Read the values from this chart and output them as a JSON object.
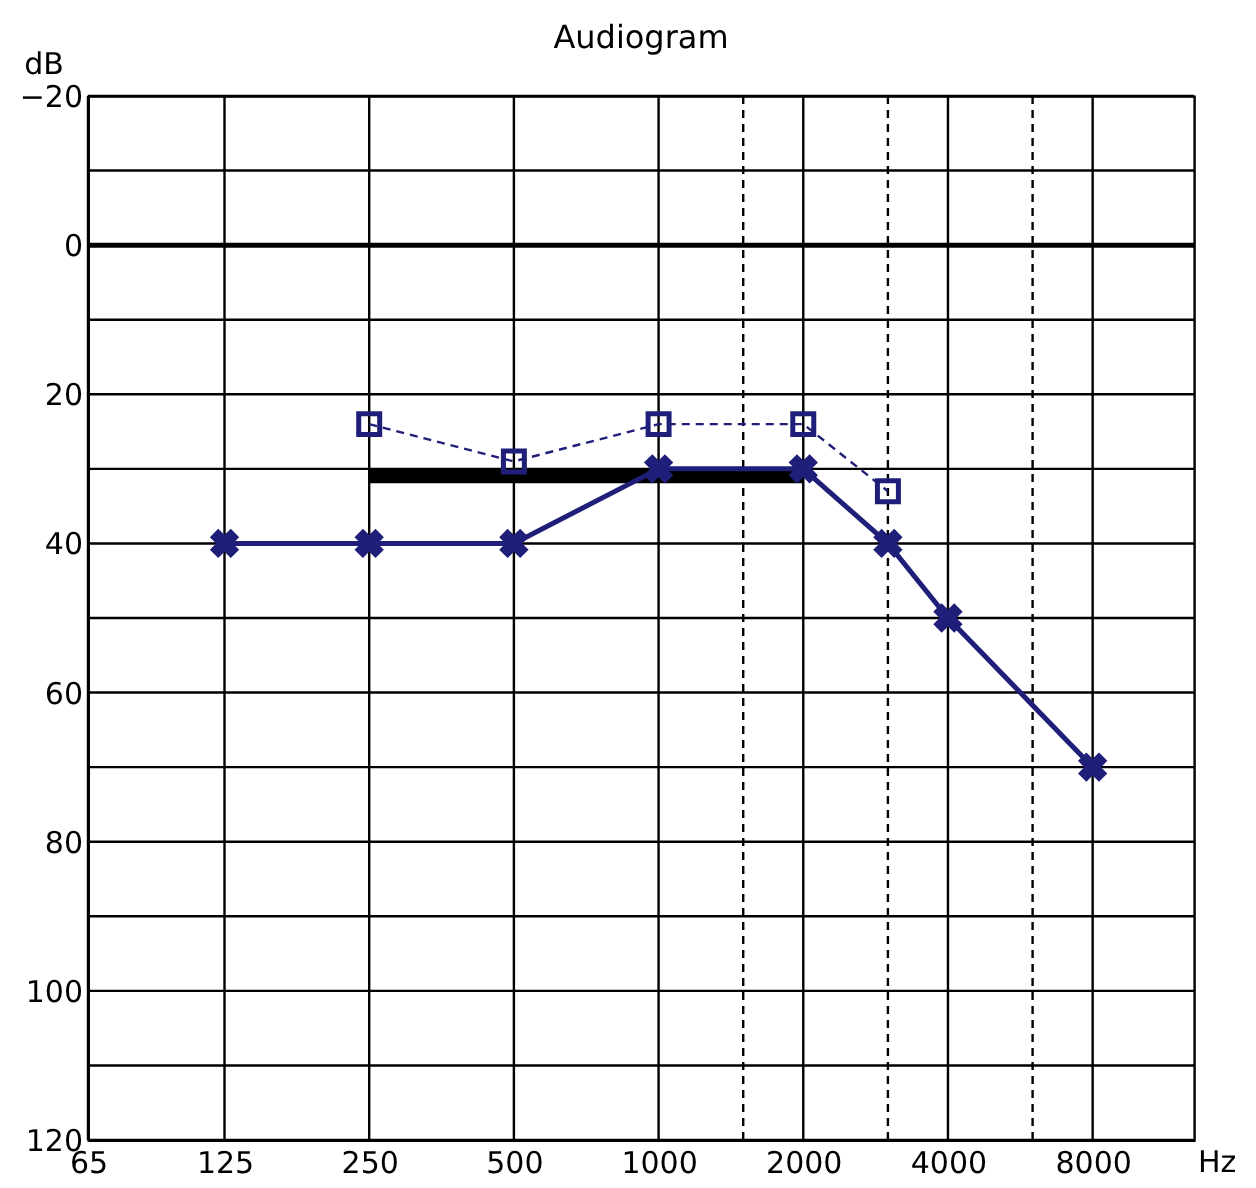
{
  "chart_data": {
    "type": "line",
    "title": "Audiogram",
    "xlabel": "Hz",
    "ylabel": "dB",
    "log": "x",
    "xlim": [
      65,
      13000
    ],
    "xticks": [
      65,
      125,
      250,
      500,
      1000,
      2000,
      4000,
      8000
    ],
    "ylim": [
      120,
      -20
    ],
    "yticks": [
      {
        "value": -20,
        "label": "−20"
      },
      {
        "value": -10,
        "label": null
      },
      0,
      {
        "value": 10,
        "label": null
      },
      20,
      {
        "value": 30,
        "label": null
      },
      40,
      {
        "value": 50,
        "label": null
      },
      60,
      {
        "value": 70,
        "label": null
      },
      80,
      {
        "value": 90,
        "label": null
      },
      100,
      {
        "value": 110,
        "label": null
      },
      120
    ],
    "grid": true,
    "ref_lines": [
      {
        "axis": "x",
        "value": 1500,
        "line_style": "dashed",
        "color": "#000000"
      },
      {
        "axis": "x",
        "value": 3000,
        "line_style": "dashed",
        "color": "#000000"
      },
      {
        "axis": "x",
        "value": 6000,
        "line_style": "dashed",
        "color": "#000000"
      },
      {
        "axis": "y",
        "value": 0,
        "line_style": "solid",
        "color": "#000000"
      }
    ],
    "series": [
      {
        "color": "#000000",
        "marker": "none",
        "line_style": "solid",
        "x": [
          250,
          2000
        ],
        "values": [
          31,
          31
        ]
      },
      {
        "color": "#1f1f7a",
        "marker": "square",
        "line_style": "dashed",
        "x": [
          250,
          500,
          1000,
          2000,
          3000
        ],
        "values": [
          24,
          29,
          24,
          24,
          33
        ]
      },
      {
        "color": "#1f1f7a",
        "marker": "cross",
        "line_style": "solid",
        "x": [
          125,
          250,
          500,
          1000,
          2000,
          3000,
          4000,
          8000
        ],
        "values": [
          40,
          40,
          40,
          30,
          30,
          40,
          50,
          70
        ]
      }
    ]
  }
}
